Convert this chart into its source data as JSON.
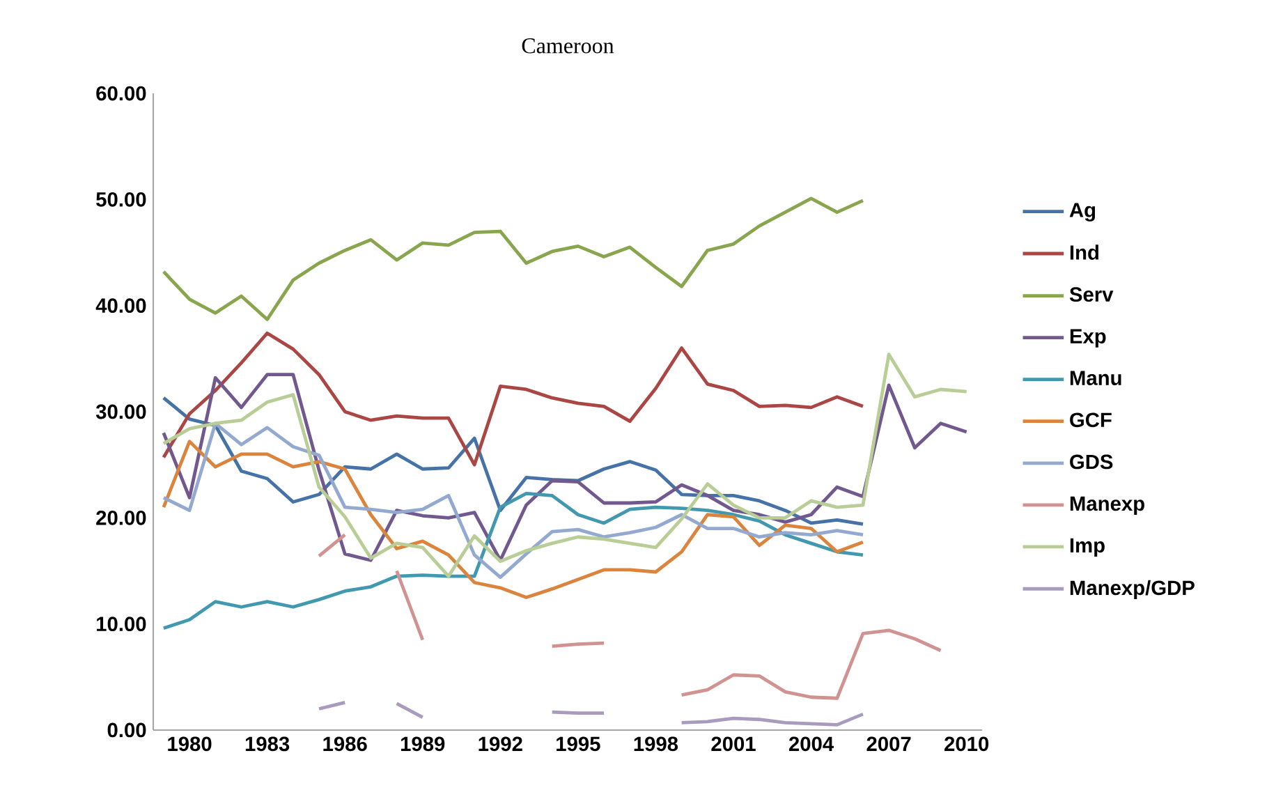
{
  "chart_data": {
    "type": "line",
    "title": "Cameroon",
    "x": [
      1979,
      1980,
      1981,
      1982,
      1983,
      1984,
      1985,
      1986,
      1987,
      1988,
      1989,
      1990,
      1991,
      1992,
      1993,
      1994,
      1995,
      1996,
      1997,
      1998,
      1999,
      2000,
      2001,
      2002,
      2003,
      2004,
      2005,
      2006,
      2007,
      2008,
      2009,
      2010
    ],
    "xlim": [
      1978.6,
      2010.6
    ],
    "xticks": [
      1980,
      1983,
      1986,
      1989,
      1992,
      1995,
      1998,
      2001,
      2004,
      2007,
      2010
    ],
    "ylim": [
      0,
      60
    ],
    "yticks": [
      {
        "value": 0,
        "label": "0.00"
      },
      {
        "value": 10,
        "label": "10.00"
      },
      {
        "value": 20,
        "label": "20.00"
      },
      {
        "value": 30,
        "label": "30.00"
      },
      {
        "value": 40,
        "label": "40.00"
      },
      {
        "value": 50,
        "label": "50.00"
      },
      {
        "value": 60,
        "label": "60.00"
      }
    ],
    "legend": "right",
    "marker": "none",
    "line_style": "solid",
    "series": [
      {
        "name": "Ag",
        "color": "#4572a7",
        "values": [
          31.3,
          29.3,
          28.7,
          24.4,
          23.7,
          21.5,
          22.2,
          24.8,
          24.6,
          26.0,
          24.6,
          24.7,
          27.5,
          20.7,
          23.8,
          23.6,
          23.5,
          24.6,
          25.3,
          24.5,
          22.2,
          22.1,
          22.1,
          21.6,
          20.7,
          19.5,
          19.8,
          19.4,
          null,
          null,
          null,
          null
        ]
      },
      {
        "name": "Ind",
        "color": "#aa4643",
        "values": [
          25.7,
          29.8,
          32.0,
          34.6,
          37.4,
          35.9,
          33.5,
          30.0,
          29.2,
          29.6,
          29.4,
          29.4,
          25.0,
          32.4,
          32.1,
          31.3,
          30.8,
          30.5,
          29.1,
          32.2,
          36.0,
          32.6,
          32.0,
          30.5,
          30.6,
          30.4,
          31.4,
          30.5,
          null,
          null,
          null,
          null
        ]
      },
      {
        "name": "Serv",
        "color": "#89a54e",
        "values": [
          43.2,
          40.6,
          39.3,
          40.9,
          38.7,
          42.4,
          44.0,
          45.2,
          46.2,
          44.3,
          45.9,
          45.7,
          46.9,
          47.0,
          44.0,
          45.1,
          45.6,
          44.6,
          45.5,
          43.6,
          41.8,
          45.2,
          45.8,
          47.5,
          48.8,
          50.1,
          48.8,
          49.9,
          null,
          null,
          null,
          null
        ]
      },
      {
        "name": "Exp",
        "color": "#71588f",
        "values": [
          28.0,
          21.9,
          33.2,
          30.4,
          33.5,
          33.5,
          24.5,
          16.6,
          16.0,
          20.7,
          20.2,
          20.0,
          20.5,
          16.0,
          21.2,
          23.5,
          23.4,
          21.4,
          21.4,
          21.5,
          23.1,
          22.1,
          20.7,
          20.3,
          19.6,
          20.3,
          22.9,
          22.0,
          32.5,
          26.6,
          28.9,
          28.1
        ]
      },
      {
        "name": "Manu",
        "color": "#4198af",
        "values": [
          9.6,
          10.4,
          12.1,
          11.6,
          12.1,
          11.6,
          12.3,
          13.1,
          13.5,
          14.5,
          14.6,
          14.5,
          14.5,
          21.0,
          22.3,
          22.1,
          20.3,
          19.5,
          20.8,
          21.0,
          20.9,
          20.7,
          20.3,
          19.7,
          18.4,
          17.6,
          16.8,
          16.5,
          null,
          null,
          null,
          null
        ]
      },
      {
        "name": "GCF",
        "color": "#db843d",
        "values": [
          21.0,
          27.2,
          24.8,
          26.0,
          26.0,
          24.8,
          25.3,
          24.6,
          20.3,
          17.1,
          17.8,
          16.5,
          13.9,
          13.4,
          12.5,
          13.3,
          14.2,
          15.1,
          15.1,
          14.9,
          16.8,
          20.3,
          20.1,
          17.4,
          19.3,
          19.0,
          16.8,
          17.7,
          null,
          null,
          null,
          null
        ]
      },
      {
        "name": "GDS",
        "color": "#93a9cf",
        "values": [
          21.9,
          20.7,
          28.9,
          26.9,
          28.5,
          26.7,
          25.9,
          21.0,
          20.8,
          20.5,
          20.8,
          22.1,
          16.5,
          14.4,
          16.6,
          18.7,
          18.9,
          18.2,
          18.6,
          19.1,
          20.3,
          19.0,
          19.0,
          18.2,
          18.6,
          18.4,
          18.8,
          18.4,
          null,
          null,
          null,
          null
        ]
      },
      {
        "name": "Manexp",
        "color": "#d19392",
        "values": [
          null,
          null,
          null,
          null,
          null,
          null,
          16.4,
          18.4,
          null,
          15.0,
          8.5,
          null,
          null,
          null,
          null,
          7.9,
          8.1,
          8.2,
          null,
          null,
          3.3,
          3.8,
          5.2,
          5.1,
          3.6,
          3.1,
          3.0,
          9.1,
          9.4,
          8.6,
          7.5,
          null
        ]
      },
      {
        "name": "Imp",
        "color": "#b9cd96",
        "values": [
          27.0,
          28.4,
          28.9,
          29.2,
          30.9,
          31.6,
          22.9,
          20.1,
          16.2,
          17.6,
          17.2,
          14.5,
          18.3,
          15.9,
          16.9,
          17.6,
          18.2,
          18.0,
          17.6,
          17.2,
          19.9,
          23.2,
          21.2,
          20.0,
          20.0,
          21.6,
          21.0,
          21.2,
          35.4,
          31.4,
          32.1,
          31.9
        ]
      },
      {
        "name": "Manexp/GDP",
        "color": "#a99bbd",
        "values": [
          null,
          null,
          null,
          null,
          null,
          null,
          2.0,
          2.6,
          null,
          2.5,
          1.2,
          null,
          null,
          null,
          null,
          1.7,
          1.6,
          1.6,
          null,
          null,
          0.7,
          0.8,
          1.1,
          1.0,
          0.7,
          0.6,
          0.5,
          1.5,
          null,
          null,
          null,
          null
        ]
      }
    ]
  }
}
